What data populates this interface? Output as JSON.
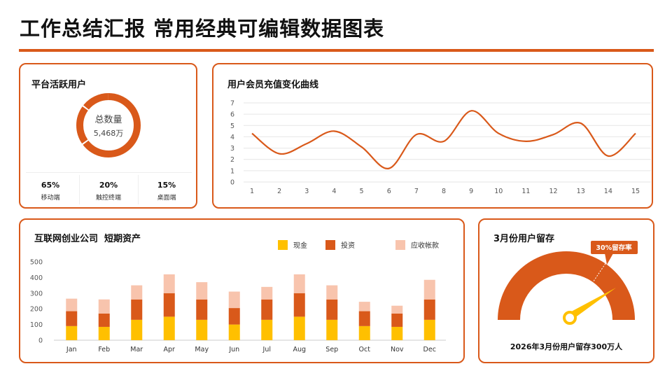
{
  "header": {
    "title": "工作总结汇报 常用经典可编辑数据图表"
  },
  "colors": {
    "accent": "#d9591a",
    "cash": "#ffc000",
    "invest": "#d9591a",
    "receivable": "#f8c4ad"
  },
  "active_users": {
    "title": "平台活跃用户",
    "center_label": "总数量",
    "center_value": "5,468万",
    "segments": [
      {
        "pct": "65%",
        "label": "移动端"
      },
      {
        "pct": "20%",
        "label": "触控终端"
      },
      {
        "pct": "15%",
        "label": "桌面端"
      }
    ]
  },
  "member_recharge": {
    "title": "用户会员充值变化曲线"
  },
  "startup_assets": {
    "title": "互联网创业公司  短期资产"
  },
  "retention": {
    "title": "3月份用户留存",
    "badge": "30%留存率",
    "value": 30,
    "caption": "2026年3月份用户留存300万人"
  },
  "chart_data": [
    {
      "type": "line",
      "title": "用户会员充值变化曲线",
      "x": [
        1,
        2,
        3,
        4,
        5,
        6,
        7,
        8,
        9,
        10,
        11,
        12,
        13,
        14,
        15
      ],
      "y": [
        4.3,
        2.5,
        3.4,
        4.5,
        3.1,
        1.2,
        4.2,
        3.6,
        6.3,
        4.3,
        3.6,
        4.2,
        5.2,
        2.3,
        4.3
      ],
      "ylim": [
        0,
        7
      ],
      "yticks": [
        0,
        1,
        2,
        3,
        4,
        5,
        6,
        7
      ]
    },
    {
      "type": "bar",
      "stacked": true,
      "title": "互联网创业公司  短期资产",
      "categories": [
        "Jan",
        "Feb",
        "Mar",
        "Apr",
        "May",
        "Jun",
        "Jul",
        "Aug",
        "Sep",
        "Oct",
        "Nov",
        "Dec"
      ],
      "series": [
        {
          "name": "现金",
          "values": [
            90,
            85,
            130,
            150,
            130,
            100,
            130,
            150,
            130,
            90,
            85,
            130
          ]
        },
        {
          "name": "投资",
          "values": [
            95,
            85,
            130,
            150,
            130,
            105,
            130,
            150,
            130,
            95,
            85,
            130
          ]
        },
        {
          "name": "应收帐款",
          "values": [
            80,
            90,
            90,
            120,
            110,
            105,
            80,
            120,
            90,
            60,
            50,
            125
          ]
        }
      ],
      "ylim": [
        0,
        500
      ],
      "yticks": [
        0,
        100,
        200,
        300,
        400,
        500
      ],
      "legend_position": "top-right"
    }
  ]
}
